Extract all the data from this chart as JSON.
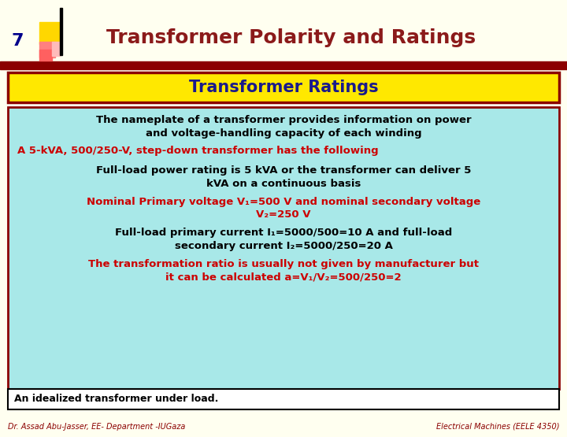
{
  "bg_color": "#FFFFF0",
  "title_text": "Transformer Polarity and Ratings",
  "title_color": "#8B1A1A",
  "slide_number": "7",
  "subtitle_box_text": "Transformer Ratings",
  "subtitle_box_bg": "#FFE800",
  "subtitle_box_border": "#8B0000",
  "subtitle_text_color": "#1A1A8B",
  "content_box_bg": "#A8E8E8",
  "content_box_border": "#8B0000",
  "lines": [
    {
      "text": "The nameplate of a transformer provides information on power\nand voltage-handling capacity of each winding",
      "color": "#000000",
      "bold": true,
      "align": "center",
      "size": 9.5
    },
    {
      "text": "A 5-kVA, 500/250-V, step-down transformer has the following",
      "color": "#CC0000",
      "bold": true,
      "align": "left",
      "size": 9.5
    },
    {
      "text": "Full-load power rating is 5 kVA or the transformer can deliver 5\nkVA on a continuous basis",
      "color": "#000000",
      "bold": true,
      "align": "center",
      "size": 9.5
    },
    {
      "text": "Nominal Primary voltage V₁=500 V and nominal secondary voltage\nV₂=250 V",
      "color": "#CC0000",
      "bold": true,
      "align": "center",
      "size": 9.5
    },
    {
      "text": "Full-load primary current I₁=5000/500=10 A and full-load\nsecondary current I₂=5000/250=20 A",
      "color": "#000000",
      "bold": true,
      "align": "center",
      "size": 9.5
    },
    {
      "text": "The transformation ratio is usually not given by manufacturer but\nit can be calculated a=V₁/V₂=500/250=2",
      "color": "#CC0000",
      "bold": true,
      "align": "center",
      "size": 9.5
    }
  ],
  "footer_left": "Dr. Assad Abu-Jasser, EE- Department -IUGaza",
  "footer_right": "Electrical Machines (EELE 4350)",
  "footer_color": "#8B0000",
  "bottom_text": "An idealized transformer under load.",
  "bottom_text_color": "#000000",
  "header_line1_color": "#8B0000",
  "header_line2_color": "#8B0000"
}
